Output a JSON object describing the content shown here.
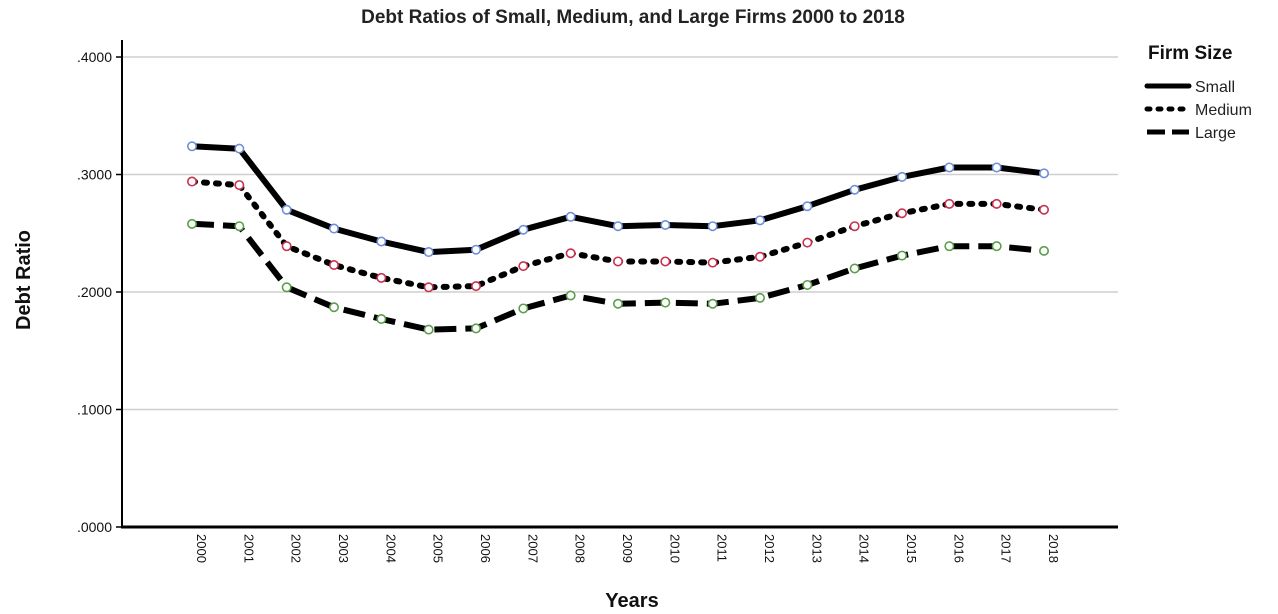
{
  "chart_data": {
    "type": "line",
    "title": "Debt Ratios of Small, Medium, and Large Firms 2000 to 2018",
    "xlabel": "Years",
    "ylabel": "Debt Ratio",
    "ylim": [
      0,
      0.4
    ],
    "yticks": [
      ".0000",
      ".1000",
      ".2000",
      ".3000",
      ".4000"
    ],
    "ytick_values": [
      0,
      0.1,
      0.2,
      0.3,
      0.4
    ],
    "grid": true,
    "legend_title": "Firm Size",
    "legend_position": "top-right",
    "categories": [
      "2000",
      "2001",
      "2002",
      "2003",
      "2004",
      "2005",
      "2006",
      "2007",
      "2008",
      "2009",
      "2010",
      "2011",
      "2012",
      "2013",
      "2014",
      "2015",
      "2016",
      "2017",
      "2018"
    ],
    "series": [
      {
        "name": "Small",
        "style": "solid",
        "marker_color": "#6f8fd8",
        "values": [
          0.324,
          0.322,
          0.27,
          0.254,
          0.243,
          0.234,
          0.236,
          0.253,
          0.264,
          0.256,
          0.257,
          0.256,
          0.261,
          0.273,
          0.287,
          0.298,
          0.306,
          0.306,
          0.301
        ]
      },
      {
        "name": "Medium",
        "style": "dotted",
        "marker_color": "#c8304f",
        "values": [
          0.294,
          0.291,
          0.239,
          0.223,
          0.212,
          0.204,
          0.205,
          0.222,
          0.233,
          0.226,
          0.226,
          0.225,
          0.23,
          0.242,
          0.256,
          0.267,
          0.275,
          0.275,
          0.27
        ]
      },
      {
        "name": "Large",
        "style": "dashed",
        "marker_color": "#5a9e4a",
        "values": [
          0.258,
          0.256,
          0.204,
          0.187,
          0.177,
          0.168,
          0.169,
          0.186,
          0.197,
          0.19,
          0.191,
          0.19,
          0.195,
          0.206,
          0.22,
          0.231,
          0.239,
          0.239,
          0.235
        ]
      }
    ]
  }
}
